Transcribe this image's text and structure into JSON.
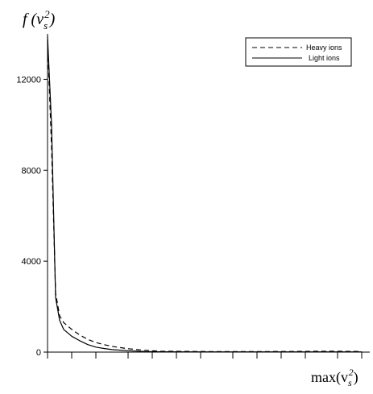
{
  "chart_data": {
    "type": "line",
    "title": "",
    "ylabel": {
      "prefix": "f (v",
      "sub": "s",
      "sup": "2",
      "suffix": ")"
    },
    "xlabel": {
      "prefix": "max(v",
      "sub": "s",
      "sup": "2",
      "suffix": ")"
    },
    "yticks": [
      0,
      4000,
      8000,
      12000
    ],
    "ytick_labels": [
      "0",
      "4000",
      "8000",
      "12000"
    ],
    "ylim": [
      0,
      14000
    ],
    "xlim": [
      0,
      40
    ],
    "xticks": [
      0,
      3,
      6,
      10,
      13,
      16,
      19,
      23,
      26,
      29,
      32,
      36,
      39
    ],
    "grid": false,
    "legend_position": "top-right",
    "series": [
      {
        "name": "Heavy ions",
        "style": "dashed",
        "x": [
          0,
          0.5,
          1,
          1.5,
          2,
          3,
          4,
          5,
          6,
          7,
          8,
          10,
          12,
          14,
          20,
          25,
          30,
          35,
          39
        ],
        "y": [
          13700,
          9000,
          2600,
          1600,
          1300,
          1000,
          750,
          560,
          420,
          330,
          250,
          150,
          80,
          40,
          25,
          20,
          30,
          40,
          30
        ]
      },
      {
        "name": "Light ions",
        "style": "solid",
        "x": [
          0,
          0.5,
          1,
          1.5,
          2,
          3,
          4,
          5,
          6,
          7,
          8,
          10,
          12,
          14,
          20,
          25,
          30,
          35,
          39
        ],
        "y": [
          13900,
          10000,
          2400,
          1400,
          1000,
          700,
          500,
          330,
          220,
          160,
          110,
          60,
          30,
          15,
          10,
          10,
          10,
          10,
          10
        ]
      }
    ]
  }
}
